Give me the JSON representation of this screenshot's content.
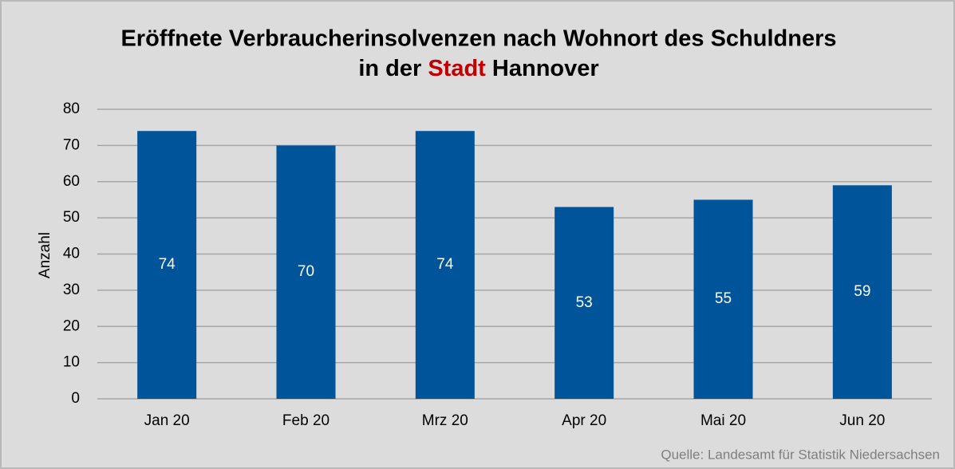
{
  "chart_data": {
    "type": "bar",
    "title": "Eröffnete Verbraucherinsolvenzen nach Wohnort des Schuldners",
    "title_line2": [
      "in der",
      "Stadt",
      "Hannover"
    ],
    "y_label": "Anzahl",
    "source": "Quelle: Landesamt für Statistik Niedersachsen",
    "categories": [
      "Jan 20",
      "Feb 20",
      "Mrz 20",
      "Apr 20",
      "Mai 20",
      "Jun 20"
    ],
    "values": [
      74,
      70,
      74,
      53,
      55,
      59
    ],
    "color": "#00549a",
    "highlight_color": "#c00000",
    "ylim": [
      0,
      80
    ],
    "yticks": [
      0,
      10,
      20,
      30,
      40,
      50,
      60,
      70,
      80
    ],
    "grid": true
  }
}
